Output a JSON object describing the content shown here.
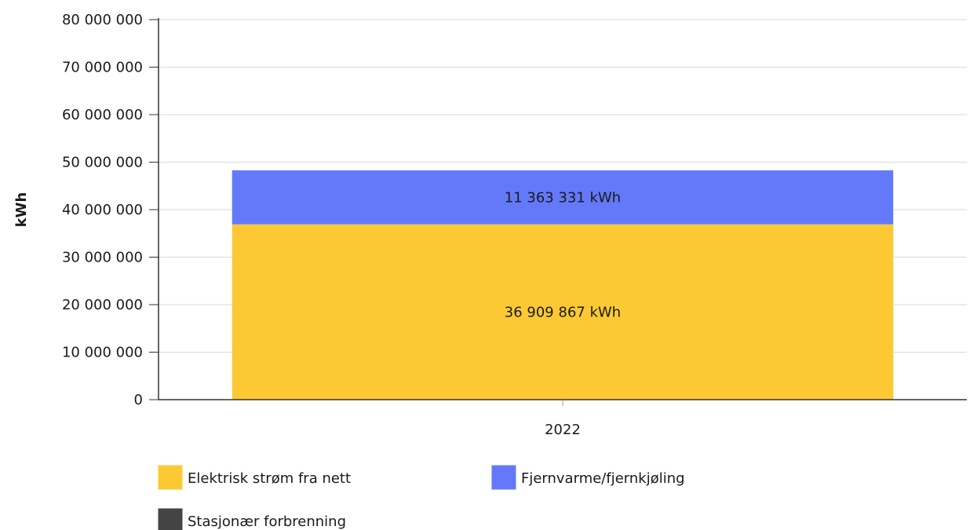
{
  "chart_data": {
    "type": "bar",
    "stacked": true,
    "categories": [
      "2022"
    ],
    "ylabel": "kWh",
    "xlabel": "",
    "ylim": [
      0,
      80000000
    ],
    "yticks": [
      0,
      10000000,
      20000000,
      30000000,
      40000000,
      50000000,
      60000000,
      70000000,
      80000000
    ],
    "ytick_labels": [
      "0",
      "10 000 000",
      "20 000 000",
      "30 000 000",
      "40 000 000",
      "50 000 000",
      "60 000 000",
      "70 000 000",
      "80 000 000"
    ],
    "grid": true,
    "legend_position": "bottom",
    "series": [
      {
        "name": "Elektrisk strøm fra nett",
        "values": [
          36909867
        ],
        "labels": [
          "36 909 867 kWh"
        ],
        "color": "#fcc934"
      },
      {
        "name": "Fjernvarme/fjernkjøling",
        "values": [
          11363331
        ],
        "labels": [
          "11 363 331 kWh"
        ],
        "color": "#6479f9"
      },
      {
        "name": "Stasjonær forbrenning",
        "values": [
          0
        ],
        "labels": [
          ""
        ],
        "color": "#444444"
      }
    ]
  }
}
